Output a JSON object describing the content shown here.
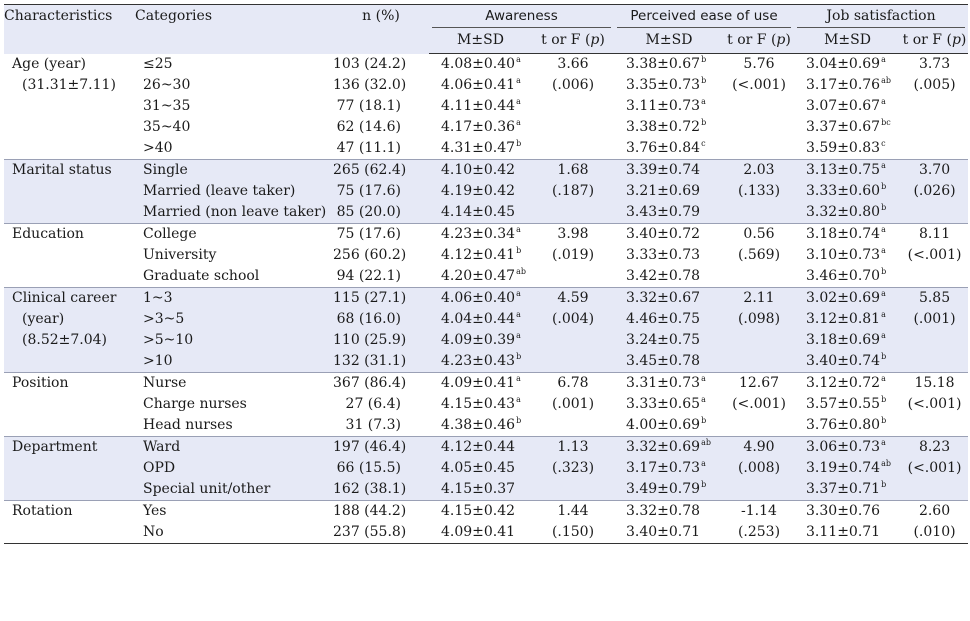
{
  "header": {
    "characteristics": "Characteristics",
    "categories": "Categories",
    "n_pct": "n (%)",
    "groups": [
      "Awareness",
      "Perceived ease of use",
      "Job satisfaction"
    ],
    "msd": "M±SD",
    "tf": "t or F (",
    "p": "p",
    "close": ")"
  },
  "groups": [
    {
      "label": [
        "Age (year)",
        "(31.31±7.11)"
      ],
      "cats": [
        "≤25",
        "26~30",
        "31~35",
        "35~40",
        ">40"
      ],
      "n": [
        "103 (24.2)",
        "136 (32.0)",
        "77 (18.1)",
        "62 (14.6)",
        "47 (11.1)"
      ],
      "aw": [
        {
          "v": "4.08±0.40",
          "s": "a"
        },
        {
          "v": "4.06±0.41",
          "s": "a"
        },
        {
          "v": "4.11±0.44",
          "s": "a"
        },
        {
          "v": "4.17±0.36",
          "s": "a"
        },
        {
          "v": "4.31±0.47",
          "s": "b"
        }
      ],
      "aw_t": [
        "3.66",
        "(.006)"
      ],
      "pe": [
        {
          "v": "3.38±0.67",
          "s": "b"
        },
        {
          "v": "3.35±0.73",
          "s": "b"
        },
        {
          "v": "3.11±0.73",
          "s": "a"
        },
        {
          "v": "3.38±0.72",
          "s": "b"
        },
        {
          "v": "3.76±0.84",
          "s": "c"
        }
      ],
      "pe_t": [
        "5.76",
        "(<.001)"
      ],
      "js": [
        {
          "v": "3.04±0.69",
          "s": "a"
        },
        {
          "v": "3.17±0.76",
          "s": "ab"
        },
        {
          "v": "3.07±0.67",
          "s": "a"
        },
        {
          "v": "3.37±0.67",
          "s": "bc"
        },
        {
          "v": "3.59±0.83",
          "s": "c"
        }
      ],
      "js_t": [
        "3.73",
        "(.005)"
      ]
    },
    {
      "label": [
        "Marital status"
      ],
      "cats": [
        "Single",
        "Married (leave taker)",
        "Married (non leave taker)"
      ],
      "n": [
        "265 (62.4)",
        "75 (17.6)",
        "85 (20.0)"
      ],
      "aw": [
        {
          "v": "4.10±0.42",
          "s": ""
        },
        {
          "v": "4.19±0.42",
          "s": ""
        },
        {
          "v": "4.14±0.45",
          "s": ""
        }
      ],
      "aw_t": [
        "1.68",
        "(.187)"
      ],
      "pe": [
        {
          "v": "3.39±0.74",
          "s": ""
        },
        {
          "v": "3.21±0.69",
          "s": ""
        },
        {
          "v": "3.43±0.79",
          "s": ""
        }
      ],
      "pe_t": [
        "2.03",
        "(.133)"
      ],
      "js": [
        {
          "v": "3.13±0.75",
          "s": "a"
        },
        {
          "v": "3.33±0.60",
          "s": "b"
        },
        {
          "v": "3.32±0.80",
          "s": "b"
        }
      ],
      "js_t": [
        "3.70",
        "(.026)"
      ]
    },
    {
      "label": [
        "Education"
      ],
      "cats": [
        "College",
        "University",
        "Graduate school"
      ],
      "n": [
        "75 (17.6)",
        "256 (60.2)",
        "94 (22.1)"
      ],
      "aw": [
        {
          "v": "4.23±0.34",
          "s": "a"
        },
        {
          "v": "4.12±0.41",
          "s": "b"
        },
        {
          "v": "4.20±0.47",
          "s": "ab"
        }
      ],
      "aw_t": [
        "3.98",
        "(.019)"
      ],
      "pe": [
        {
          "v": "3.40±0.72",
          "s": ""
        },
        {
          "v": "3.33±0.73",
          "s": ""
        },
        {
          "v": "3.42±0.78",
          "s": ""
        }
      ],
      "pe_t": [
        "0.56",
        "(.569)"
      ],
      "js": [
        {
          "v": "3.18±0.74",
          "s": "a"
        },
        {
          "v": "3.10±0.73",
          "s": "a"
        },
        {
          "v": "3.46±0.70",
          "s": "b"
        }
      ],
      "js_t": [
        "8.11",
        "(<.001)"
      ]
    },
    {
      "label": [
        "Clinical career",
        "(year)",
        "(8.52±7.04)"
      ],
      "cats": [
        "1~3",
        ">3~5",
        ">5~10",
        ">10"
      ],
      "n": [
        "115 (27.1)",
        "68 (16.0)",
        "110 (25.9)",
        "132 (31.1)"
      ],
      "aw": [
        {
          "v": "4.06±0.40",
          "s": "a"
        },
        {
          "v": "4.04±0.44",
          "s": "a"
        },
        {
          "v": "4.09±0.39",
          "s": "a"
        },
        {
          "v": "4.23±0.43",
          "s": "b"
        }
      ],
      "aw_t": [
        "4.59",
        "(.004)"
      ],
      "pe": [
        {
          "v": "3.32±0.67",
          "s": ""
        },
        {
          "v": "4.46±0.75",
          "s": ""
        },
        {
          "v": "3.24±0.75",
          "s": ""
        },
        {
          "v": "3.45±0.78",
          "s": ""
        }
      ],
      "pe_t": [
        "2.11",
        "(.098)"
      ],
      "js": [
        {
          "v": "3.02±0.69",
          "s": "a"
        },
        {
          "v": "3.12±0.81",
          "s": "a"
        },
        {
          "v": "3.18±0.69",
          "s": "a"
        },
        {
          "v": "3.40±0.74",
          "s": "b"
        }
      ],
      "js_t": [
        "5.85",
        "(.001)"
      ]
    },
    {
      "label": [
        "Position"
      ],
      "cats": [
        "Nurse",
        "Charge nurses",
        "Head nurses"
      ],
      "n": [
        "367 (86.4)",
        "27 (6.4)",
        "31 (7.3)"
      ],
      "aw": [
        {
          "v": "4.09±0.41",
          "s": "a"
        },
        {
          "v": "4.15±0.43",
          "s": "a"
        },
        {
          "v": "4.38±0.46",
          "s": "b"
        }
      ],
      "aw_t": [
        "6.78",
        "(.001)"
      ],
      "pe": [
        {
          "v": "3.31±0.73",
          "s": "a"
        },
        {
          "v": "3.33±0.65",
          "s": "a"
        },
        {
          "v": "4.00±0.69",
          "s": "b"
        }
      ],
      "pe_t": [
        "12.67",
        "(<.001)"
      ],
      "js": [
        {
          "v": "3.12±0.72",
          "s": "a"
        },
        {
          "v": "3.57±0.55",
          "s": "b"
        },
        {
          "v": "3.76±0.80",
          "s": "b"
        }
      ],
      "js_t": [
        "15.18",
        "(<.001)"
      ]
    },
    {
      "label": [
        "Department"
      ],
      "cats": [
        "Ward",
        "OPD",
        "Special unit/other"
      ],
      "n": [
        "197 (46.4)",
        "66 (15.5)",
        "162 (38.1)"
      ],
      "aw": [
        {
          "v": "4.12±0.44",
          "s": ""
        },
        {
          "v": "4.05±0.45",
          "s": ""
        },
        {
          "v": "4.15±0.37",
          "s": ""
        }
      ],
      "aw_t": [
        "1.13",
        "(.323)"
      ],
      "pe": [
        {
          "v": "3.32±0.69",
          "s": "ab"
        },
        {
          "v": "3.17±0.73",
          "s": "a"
        },
        {
          "v": "3.49±0.79",
          "s": "b"
        }
      ],
      "pe_t": [
        "4.90",
        "(.008)"
      ],
      "js": [
        {
          "v": "3.06±0.73",
          "s": "a"
        },
        {
          "v": "3.19±0.74",
          "s": "ab"
        },
        {
          "v": "3.37±0.71",
          "s": "b"
        }
      ],
      "js_t": [
        "8.23",
        "(<.001)"
      ]
    },
    {
      "label": [
        "Rotation"
      ],
      "cats": [
        "Yes",
        "No"
      ],
      "n": [
        "188 (44.2)",
        "237 (55.8)"
      ],
      "aw": [
        {
          "v": "4.15±0.42",
          "s": ""
        },
        {
          "v": "4.09±0.41",
          "s": ""
        }
      ],
      "aw_t": [
        "1.44",
        "(.150)"
      ],
      "pe": [
        {
          "v": "3.32±0.78",
          "s": ""
        },
        {
          "v": "3.40±0.71",
          "s": ""
        }
      ],
      "pe_t": [
        "-1.14",
        "(.253)"
      ],
      "js": [
        {
          "v": "3.30±0.76",
          "s": ""
        },
        {
          "v": "3.11±0.71",
          "s": ""
        }
      ],
      "js_t": [
        "2.60",
        "(.010)"
      ]
    }
  ]
}
